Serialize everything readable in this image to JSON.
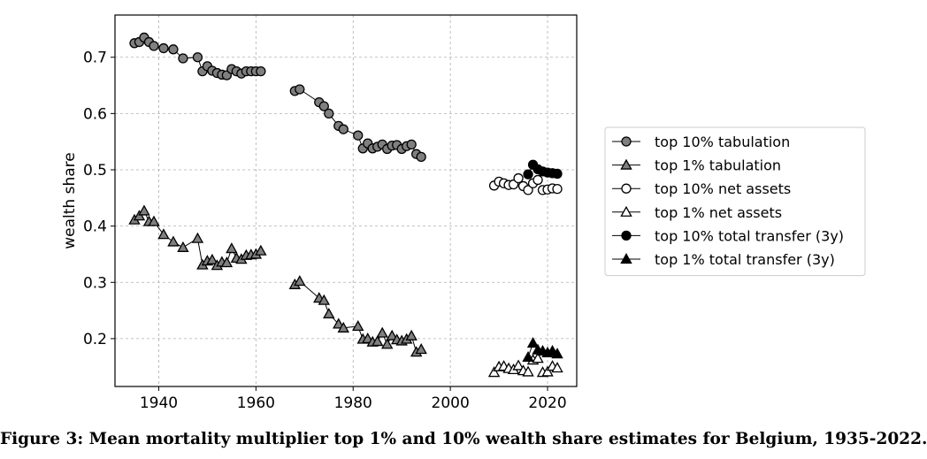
{
  "caption": "Figure 3: Mean mortality multiplier top 1% and 10% wealth share estimates for Belgium, 1935-2022.",
  "colors": {
    "grey": "#7f7f7f",
    "black": "#000000",
    "white": "#ffffff",
    "grid": "#b0b0b0"
  },
  "chart_data": {
    "type": "scatter",
    "title": "",
    "xlabel": "",
    "ylabel": "wealth share",
    "xlim": [
      1931,
      2026
    ],
    "ylim": [
      0.115,
      0.775
    ],
    "xticks": [
      1940,
      1960,
      1980,
      2000,
      2020
    ],
    "yticks": [
      0.2,
      0.3,
      0.4,
      0.5,
      0.6,
      0.7
    ],
    "grid": true,
    "legend_position": "right",
    "series": [
      {
        "name": "top 10% tabulation",
        "marker": "circle",
        "fill": "grey",
        "connected": true,
        "points": [
          [
            1935,
            0.725
          ],
          [
            1936,
            0.727
          ],
          [
            1937,
            0.735
          ],
          [
            1938,
            0.727
          ],
          [
            1939,
            0.72
          ],
          [
            1941,
            0.716
          ],
          [
            1943,
            0.714
          ],
          [
            1945,
            0.698
          ],
          [
            1948,
            0.7
          ],
          [
            1949,
            0.675
          ],
          [
            1950,
            0.684
          ],
          [
            1951,
            0.676
          ],
          [
            1952,
            0.672
          ],
          [
            1953,
            0.669
          ],
          [
            1954,
            0.668
          ],
          [
            1955,
            0.679
          ],
          [
            1956,
            0.675
          ],
          [
            1957,
            0.671
          ],
          [
            1958,
            0.675
          ],
          [
            1959,
            0.675
          ],
          [
            1960,
            0.675
          ],
          [
            1961,
            0.675
          ]
        ]
      },
      {
        "name": "top 1% tabulation",
        "marker": "triangle",
        "fill": "grey",
        "connected": true,
        "points": [
          [
            1935,
            0.411
          ],
          [
            1936,
            0.418
          ],
          [
            1937,
            0.427
          ],
          [
            1938,
            0.408
          ],
          [
            1939,
            0.408
          ],
          [
            1941,
            0.385
          ],
          [
            1943,
            0.372
          ],
          [
            1945,
            0.362
          ],
          [
            1948,
            0.378
          ],
          [
            1949,
            0.331
          ],
          [
            1950,
            0.338
          ],
          [
            1951,
            0.34
          ],
          [
            1952,
            0.33
          ],
          [
            1953,
            0.336
          ],
          [
            1954,
            0.335
          ],
          [
            1955,
            0.36
          ],
          [
            1956,
            0.343
          ],
          [
            1957,
            0.341
          ],
          [
            1958,
            0.348
          ],
          [
            1959,
            0.349
          ],
          [
            1960,
            0.35
          ],
          [
            1961,
            0.356
          ]
        ]
      },
      {
        "name": "top 10% tabulation (segment 2)",
        "marker": "circle",
        "fill": "grey",
        "connected": true,
        "legend": false,
        "points": [
          [
            1968,
            0.64
          ],
          [
            1969,
            0.643
          ],
          [
            1973,
            0.62
          ],
          [
            1974,
            0.613
          ],
          [
            1975,
            0.6
          ],
          [
            1977,
            0.578
          ],
          [
            1978,
            0.572
          ],
          [
            1981,
            0.561
          ],
          [
            1982,
            0.538
          ],
          [
            1983,
            0.547
          ],
          [
            1984,
            0.538
          ],
          [
            1985,
            0.541
          ],
          [
            1986,
            0.545
          ],
          [
            1987,
            0.537
          ],
          [
            1988,
            0.543
          ],
          [
            1989,
            0.544
          ],
          [
            1990,
            0.537
          ],
          [
            1991,
            0.542
          ],
          [
            1992,
            0.545
          ],
          [
            1993,
            0.528
          ],
          [
            1994,
            0.523
          ]
        ]
      },
      {
        "name": "top 1% tabulation (segment 2)",
        "marker": "triangle",
        "fill": "grey",
        "connected": true,
        "legend": false,
        "points": [
          [
            1968,
            0.296
          ],
          [
            1969,
            0.302
          ],
          [
            1973,
            0.272
          ],
          [
            1974,
            0.268
          ],
          [
            1975,
            0.244
          ],
          [
            1977,
            0.226
          ],
          [
            1978,
            0.219
          ],
          [
            1981,
            0.222
          ],
          [
            1982,
            0.199
          ],
          [
            1983,
            0.2
          ],
          [
            1984,
            0.194
          ],
          [
            1985,
            0.195
          ],
          [
            1986,
            0.21
          ],
          [
            1987,
            0.19
          ],
          [
            1988,
            0.205
          ],
          [
            1989,
            0.198
          ],
          [
            1990,
            0.196
          ],
          [
            1991,
            0.199
          ],
          [
            1992,
            0.205
          ],
          [
            1993,
            0.176
          ],
          [
            1994,
            0.181
          ]
        ]
      },
      {
        "name": "top 10% net assets",
        "marker": "circle",
        "fill": "white",
        "connected": false,
        "points": [
          [
            2009,
            0.472
          ],
          [
            2010,
            0.479
          ],
          [
            2011,
            0.476
          ],
          [
            2012,
            0.473
          ],
          [
            2013,
            0.474
          ],
          [
            2014,
            0.485
          ],
          [
            2015,
            0.471
          ],
          [
            2016,
            0.464
          ],
          [
            2017,
            0.476
          ],
          [
            2018,
            0.482
          ],
          [
            2019,
            0.464
          ],
          [
            2020,
            0.465
          ],
          [
            2021,
            0.467
          ],
          [
            2022,
            0.466
          ]
        ]
      },
      {
        "name": "top 1% net assets",
        "marker": "triangle",
        "fill": "white",
        "connected": false,
        "points": [
          [
            2009,
            0.14
          ],
          [
            2010,
            0.15
          ],
          [
            2011,
            0.151
          ],
          [
            2012,
            0.147
          ],
          [
            2013,
            0.145
          ],
          [
            2014,
            0.152
          ],
          [
            2015,
            0.143
          ],
          [
            2016,
            0.141
          ],
          [
            2017,
            0.162
          ],
          [
            2018,
            0.165
          ],
          [
            2019,
            0.14
          ],
          [
            2020,
            0.141
          ],
          [
            2021,
            0.151
          ],
          [
            2022,
            0.148
          ]
        ]
      },
      {
        "name": "top 10% total transfer (3y)",
        "marker": "circle",
        "fill": "black",
        "connected": true,
        "points": [
          [
            2016,
            0.492
          ],
          [
            2017,
            0.509
          ],
          [
            2018,
            0.501
          ],
          [
            2019,
            0.497
          ],
          [
            2020,
            0.495
          ],
          [
            2021,
            0.494
          ],
          [
            2022,
            0.493
          ]
        ]
      },
      {
        "name": "top 1% total transfer (3y)",
        "marker": "triangle",
        "fill": "black",
        "connected": true,
        "points": [
          [
            2016,
            0.167
          ],
          [
            2017,
            0.192
          ],
          [
            2018,
            0.18
          ],
          [
            2019,
            0.178
          ],
          [
            2020,
            0.175
          ],
          [
            2021,
            0.178
          ],
          [
            2022,
            0.173
          ]
        ]
      }
    ]
  }
}
